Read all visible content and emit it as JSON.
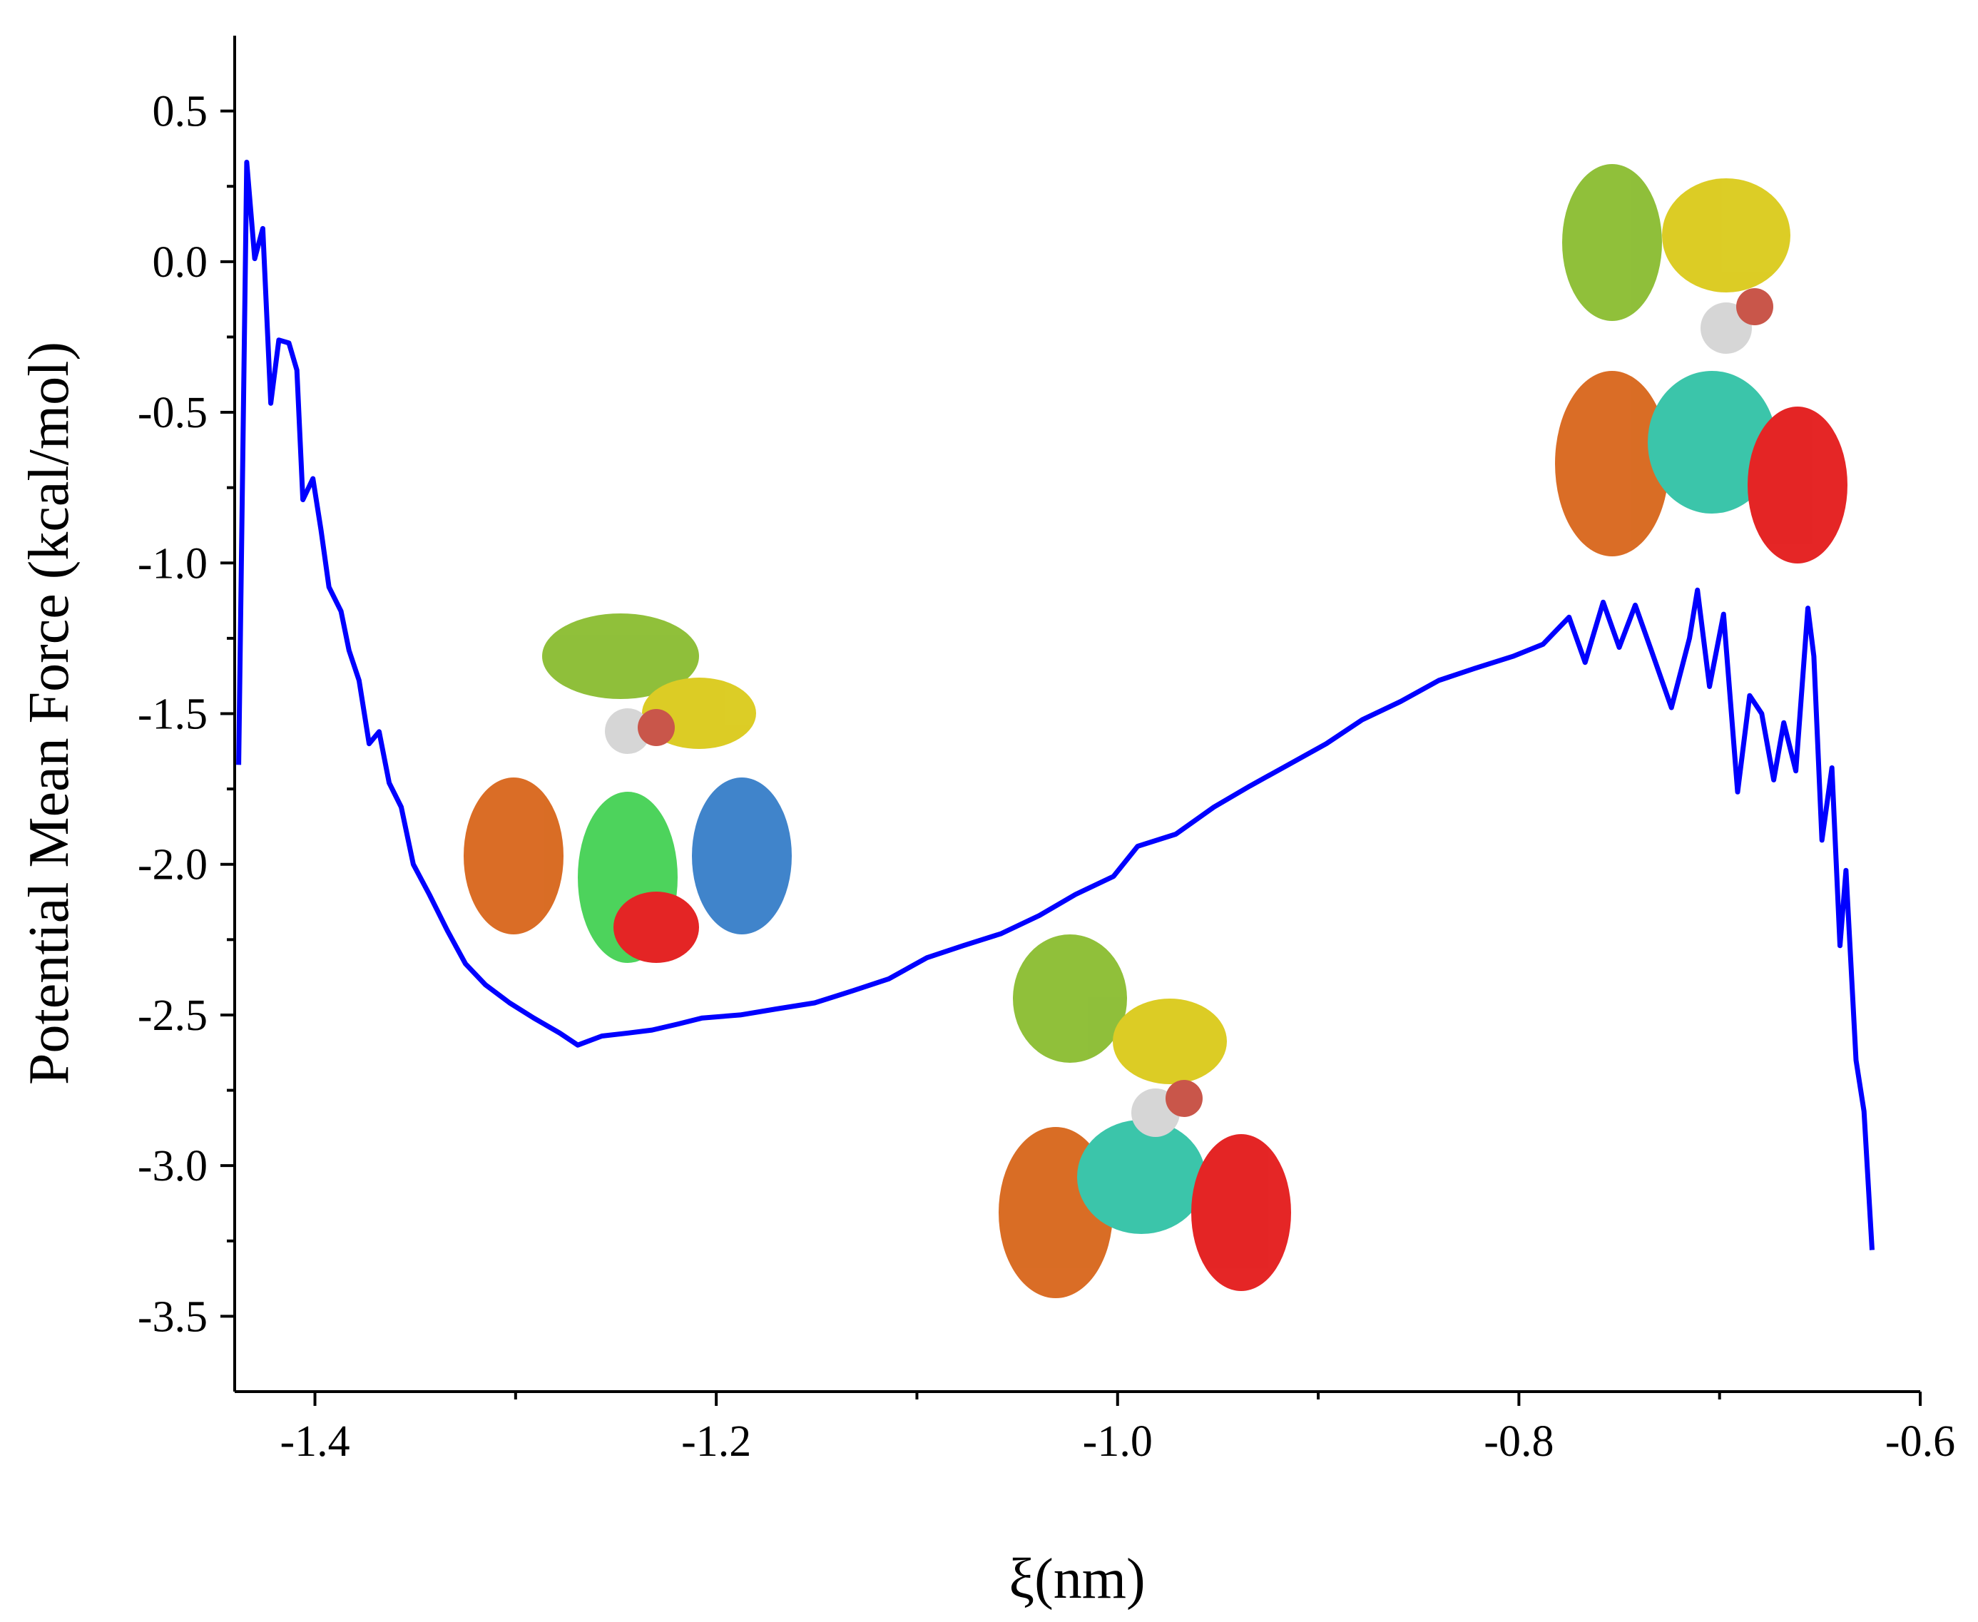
{
  "chart_data": {
    "type": "line",
    "xlabel": "ξ(nm)",
    "ylabel": "Potential Mean Force (kcal/mol)",
    "color": "#0000ff",
    "x": [
      -1.438,
      -1.434,
      -1.43,
      -1.426,
      -1.422,
      -1.418,
      -1.413,
      -1.409,
      -1.406,
      -1.401,
      -1.397,
      -1.393,
      -1.387,
      -1.383,
      -1.378,
      -1.373,
      -1.368,
      -1.363,
      -1.357,
      -1.351,
      -1.343,
      -1.334,
      -1.325,
      -1.315,
      -1.303,
      -1.291,
      -1.278,
      -1.269,
      -1.257,
      -1.244,
      -1.232,
      -1.219,
      -1.207,
      -1.188,
      -1.17,
      -1.151,
      -1.132,
      -1.114,
      -1.095,
      -1.077,
      -1.058,
      -1.039,
      -1.021,
      -1.002,
      -0.99,
      -0.971,
      -0.952,
      -0.934,
      -0.915,
      -0.896,
      -0.878,
      -0.859,
      -0.84,
      -0.822,
      -0.803,
      -0.788,
      -0.775,
      -0.767,
      -0.758,
      -0.75,
      -0.742,
      -0.734,
      -0.724,
      -0.715,
      -0.711,
      -0.705,
      -0.698,
      -0.691,
      -0.685,
      -0.679,
      -0.673,
      -0.668,
      -0.662,
      -0.656,
      -0.653,
      -0.649,
      -0.644,
      -0.64,
      -0.637,
      -0.632,
      -0.628,
      -0.624
    ],
    "values": [
      -1.67,
      0.33,
      0.01,
      0.11,
      -0.47,
      -0.26,
      -0.27,
      -0.36,
      -0.79,
      -0.72,
      -0.89,
      -1.08,
      -1.16,
      -1.29,
      -1.39,
      -1.6,
      -1.56,
      -1.73,
      -1.81,
      -2.0,
      -2.1,
      -2.22,
      -2.33,
      -2.4,
      -2.46,
      -2.51,
      -2.56,
      -2.6,
      -2.57,
      -2.56,
      -2.55,
      -2.53,
      -2.51,
      -2.5,
      -2.48,
      -2.46,
      -2.42,
      -2.38,
      -2.31,
      -2.27,
      -2.23,
      -2.17,
      -2.1,
      -2.04,
      -1.94,
      -1.9,
      -1.81,
      -1.74,
      -1.67,
      -1.6,
      -1.52,
      -1.46,
      -1.39,
      -1.35,
      -1.31,
      -1.27,
      -1.18,
      -1.33,
      -1.13,
      -1.28,
      -1.14,
      -1.29,
      -1.48,
      -1.25,
      -1.09,
      -1.41,
      -1.17,
      -1.76,
      -1.44,
      -1.5,
      -1.72,
      -1.53,
      -1.69,
      -1.15,
      -1.31,
      -1.92,
      -1.68,
      -2.27,
      -2.02,
      -2.65,
      -2.82,
      -3.28
    ],
    "xlim": [
      -1.44,
      -0.6
    ],
    "ylim": [
      -3.75,
      0.75
    ],
    "xticks": [
      -1.4,
      -1.2,
      {
        "value": -1.0,
        "label": "-1.0"
      },
      -0.8,
      -0.6
    ],
    "yticks": [
      0.5,
      {
        "value": 0.0,
        "label": "0.0"
      },
      -0.5,
      {
        "value": -1.0,
        "label": "-1.0"
      },
      -1.5,
      {
        "value": -2.0,
        "label": "-2.0"
      },
      -2.5,
      {
        "value": -3.0,
        "label": "-3.0"
      },
      -3.5
    ],
    "xticks_minor": [
      -1.3,
      -1.1,
      -0.9,
      -0.7
    ],
    "yticks_minor": [
      0.25,
      -0.25,
      -0.75,
      -1.25,
      -1.75,
      -2.25,
      -2.75,
      -3.25
    ]
  }
}
